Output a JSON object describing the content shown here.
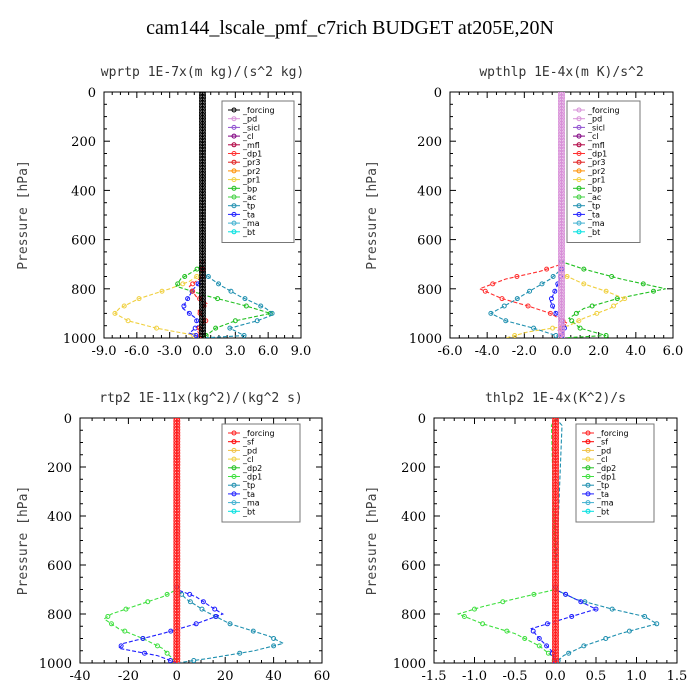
{
  "figure_title": "cam144_lscale_pmf_c7rich  BUDGET at205E,20N",
  "chart_data": [
    {
      "type": "line",
      "title": "wprtp  1E-7x(m kg)/(s^2 kg)",
      "ylabel": "Pressure [hPa]",
      "xlim": [
        -9,
        9
      ],
      "ylim": [
        1000,
        0
      ],
      "xticks": [
        "-9.0",
        "-6.0",
        "-3.0",
        "0.0",
        "3.0",
        "6.0",
        "9.0"
      ],
      "yticks": [
        "0",
        "200",
        "400",
        "600",
        "800",
        "1000"
      ],
      "legend": [
        "_forcing",
        "_pd",
        "_sicl",
        "_cl",
        "_mfl",
        "_dp1",
        "_pr3",
        "_pr2",
        "_pr1",
        "_bp",
        "_ac",
        "_tp",
        "_ta",
        "_ma",
        "_bt"
      ],
      "colors": [
        "#000000",
        "#d890d8",
        "#9050d0",
        "#800080",
        "#b00040",
        "#ff3030",
        "#e02020",
        "#ff9000",
        "#f0d040",
        "#20c020",
        "#40d040",
        "#2090b0",
        "#2020ff",
        "#40b0d0",
        "#00e0e0"
      ],
      "series": [
        {
          "name": "_pr1",
          "color": "#f0d040",
          "points": [
            [
              0.0,
              0
            ],
            [
              0.0,
              700
            ],
            [
              -0.2,
              740
            ],
            [
              -1.2,
              770
            ],
            [
              -3.0,
              800
            ],
            [
              -5.8,
              840
            ],
            [
              -7.6,
              880
            ],
            [
              -8.0,
              900
            ],
            [
              -6.8,
              930
            ],
            [
              -4.2,
              960
            ],
            [
              -1.2,
              985
            ],
            [
              0.0,
              1000
            ]
          ]
        },
        {
          "name": "_bp",
          "color": "#20c020",
          "points": [
            [
              0.0,
              0
            ],
            [
              0.0,
              700
            ],
            [
              -0.5,
              720
            ],
            [
              -2.0,
              760
            ],
            [
              -2.4,
              790
            ],
            [
              0.5,
              830
            ],
            [
              4.0,
              870
            ],
            [
              6.2,
              900
            ],
            [
              3.0,
              930
            ],
            [
              1.2,
              960
            ],
            [
              0.5,
              985
            ],
            [
              0.0,
              1000
            ]
          ]
        },
        {
          "name": "_tp",
          "color": "#2090b0",
          "points": [
            [
              0.0,
              0
            ],
            [
              0.0,
              730
            ],
            [
              0.8,
              760
            ],
            [
              1.8,
              790
            ],
            [
              3.4,
              830
            ],
            [
              5.8,
              880
            ],
            [
              6.5,
              905
            ],
            [
              5.0,
              930
            ],
            [
              2.5,
              960
            ],
            [
              3.8,
              990
            ],
            [
              0.0,
              1000
            ]
          ]
        },
        {
          "name": "_ta",
          "color": "#2020ff",
          "points": [
            [
              0.0,
              0
            ],
            [
              0.0,
              760
            ],
            [
              -0.8,
              800
            ],
            [
              -1.5,
              850
            ],
            [
              -1.8,
              880
            ],
            [
              -0.6,
              920
            ],
            [
              -0.4,
              950
            ],
            [
              -1.2,
              980
            ],
            [
              0.0,
              1000
            ]
          ]
        },
        {
          "name": "_dp1",
          "color": "#ff3030",
          "points": [
            [
              0.0,
              0
            ],
            [
              0.0,
              750
            ],
            [
              -1.2,
              790
            ],
            [
              -0.6,
              830
            ],
            [
              0.4,
              860
            ],
            [
              -0.4,
              890
            ],
            [
              0.3,
              930
            ],
            [
              -0.5,
              970
            ],
            [
              0.0,
              1000
            ]
          ]
        },
        {
          "name": "_forcing",
          "color": "#000000",
          "marker": true,
          "points": [
            [
              0.0,
              0
            ],
            [
              0.0,
              1000
            ]
          ]
        }
      ]
    },
    {
      "type": "line",
      "title": "wpthlp  1E-4x(m K)/s^2",
      "ylabel": "Pressure [hPa]",
      "xlim": [
        -6,
        6
      ],
      "ylim": [
        1000,
        0
      ],
      "xticks": [
        "-6.0",
        "-4.0",
        "-2.0",
        "0.0",
        "2.0",
        "4.0",
        "6.0"
      ],
      "yticks": [
        "0",
        "200",
        "400",
        "600",
        "800",
        "1000"
      ],
      "legend": [
        "_forcing",
        "_pd",
        "_sicl",
        "_cl",
        "_mfl",
        "_dp1",
        "_pr3",
        "_pr2",
        "_pr1",
        "_bp",
        "_ac",
        "_tp",
        "_ta",
        "_ma",
        "_bt"
      ],
      "colors": [
        "#d890d8",
        "#d890d8",
        "#9050d0",
        "#800080",
        "#b00040",
        "#ff3030",
        "#e02020",
        "#ff9000",
        "#f0d040",
        "#20c020",
        "#40d040",
        "#2090b0",
        "#2020ff",
        "#40b0d0",
        "#00e0e0"
      ],
      "series": [
        {
          "name": "_dp1",
          "color": "#ff3030",
          "points": [
            [
              0.0,
              0
            ],
            [
              0.0,
              700
            ],
            [
              -1.2,
              730
            ],
            [
              -3.0,
              760
            ],
            [
              -4.4,
              800
            ],
            [
              -3.2,
              840
            ],
            [
              -1.8,
              870
            ],
            [
              -0.6,
              900
            ],
            [
              0.3,
              940
            ],
            [
              -0.2,
              970
            ],
            [
              0.0,
              1000
            ]
          ]
        },
        {
          "name": "_bp",
          "color": "#20c020",
          "points": [
            [
              0.0,
              0
            ],
            [
              0.0,
              690
            ],
            [
              1.2,
              720
            ],
            [
              3.2,
              760
            ],
            [
              5.6,
              800
            ],
            [
              3.0,
              840
            ],
            [
              1.2,
              880
            ],
            [
              0.4,
              920
            ],
            [
              1.0,
              960
            ],
            [
              2.4,
              990
            ],
            [
              0.0,
              1000
            ]
          ]
        },
        {
          "name": "_pr1",
          "color": "#f0d040",
          "points": [
            [
              0.0,
              0
            ],
            [
              0.0,
              740
            ],
            [
              1.2,
              780
            ],
            [
              2.4,
              810
            ],
            [
              3.4,
              840
            ],
            [
              2.6,
              880
            ],
            [
              1.2,
              920
            ],
            [
              0.4,
              950
            ],
            [
              -1.8,
              975
            ],
            [
              -3.0,
              1000
            ]
          ]
        },
        {
          "name": "_tp",
          "color": "#2090b0",
          "points": [
            [
              0.0,
              0
            ],
            [
              0.0,
              720
            ],
            [
              -0.6,
              760
            ],
            [
              -1.5,
              800
            ],
            [
              -2.6,
              850
            ],
            [
              -3.8,
              900
            ],
            [
              -3.0,
              930
            ],
            [
              -1.5,
              960
            ],
            [
              -0.3,
              990
            ],
            [
              0.0,
              1000
            ]
          ]
        },
        {
          "name": "_ta",
          "color": "#2020ff",
          "points": [
            [
              0.0,
              0
            ],
            [
              0.0,
              740
            ],
            [
              -0.3,
              800
            ],
            [
              -0.6,
              850
            ],
            [
              -0.3,
              900
            ],
            [
              0.2,
              950
            ],
            [
              0.0,
              1000
            ]
          ]
        },
        {
          "name": "_forcing",
          "color": "#d890d8",
          "marker": true,
          "points": [
            [
              0.0,
              0
            ],
            [
              0.0,
              1000
            ]
          ]
        }
      ]
    },
    {
      "type": "line",
      "title": "rtp2  1E-11x(kg^2)/(kg^2 s)",
      "ylabel": "Pressure [hPa]",
      "xlim": [
        -40,
        60
      ],
      "ylim": [
        1000,
        0
      ],
      "xticks": [
        "-40",
        "-20",
        "0",
        "20",
        "40",
        "60"
      ],
      "yticks": [
        "0",
        "200",
        "400",
        "600",
        "800",
        "1000"
      ],
      "legend": [
        "_forcing",
        "_sf",
        "_pd",
        "_cl",
        "_dp2",
        "_dp1",
        "_tp",
        "_ta",
        "_ma",
        "_bt"
      ],
      "colors": [
        "#ff2020",
        "#ff0000",
        "#f0c040",
        "#f0d040",
        "#20c020",
        "#40e040",
        "#2090b0",
        "#2020ff",
        "#40b0d0",
        "#00e0e0"
      ],
      "series": [
        {
          "name": "_dp1",
          "color": "#40e040",
          "points": [
            [
              0.0,
              0
            ],
            [
              0.0,
              700
            ],
            [
              -6,
              730
            ],
            [
              -18,
              770
            ],
            [
              -27,
              800
            ],
            [
              -30,
              820
            ],
            [
              -24,
              860
            ],
            [
              -14,
              900
            ],
            [
              -6,
              940
            ],
            [
              -2,
              980
            ],
            [
              0.0,
              1000
            ]
          ]
        },
        {
          "name": "_tp",
          "color": "#2090b0",
          "points": [
            [
              0.0,
              0
            ],
            [
              0.0,
              700
            ],
            [
              4,
              740
            ],
            [
              12,
              790
            ],
            [
              22,
              840
            ],
            [
              38,
              890
            ],
            [
              44,
              920
            ],
            [
              32,
              950
            ],
            [
              14,
              980
            ],
            [
              0.0,
              1000
            ]
          ]
        },
        {
          "name": "_ta",
          "color": "#2020ff",
          "points": [
            [
              0.0,
              0
            ],
            [
              0.0,
              700
            ],
            [
              8,
              730
            ],
            [
              14,
              770
            ],
            [
              19,
              800
            ],
            [
              8,
              840
            ],
            [
              -6,
              880
            ],
            [
              -22,
              920
            ],
            [
              -24,
              940
            ],
            [
              -8,
              970
            ],
            [
              0.0,
              1000
            ]
          ]
        },
        {
          "name": "_forcing",
          "color": "#ff2020",
          "marker": true,
          "points": [
            [
              0.0,
              0
            ],
            [
              0.0,
              1000
            ]
          ]
        }
      ]
    },
    {
      "type": "line",
      "title": "thlp2  1E-4x(K^2)/s",
      "ylabel": "Pressure [hPa]",
      "xlim": [
        -1.5,
        1.5
      ],
      "ylim": [
        1000,
        0
      ],
      "xticks": [
        "-1.5",
        "-1.0",
        "-0.5",
        "0.0",
        "0.5",
        "1.0",
        "1.5"
      ],
      "yticks": [
        "0",
        "200",
        "400",
        "600",
        "800",
        "1000"
      ],
      "legend": [
        "_forcing",
        "_sf",
        "_pd",
        "_cl",
        "_dp2",
        "_dp1",
        "_tp",
        "_ta",
        "_ma",
        "_bt"
      ],
      "colors": [
        "#ff2020",
        "#ff0000",
        "#f0c040",
        "#f0d040",
        "#20c020",
        "#40e040",
        "#2090b0",
        "#2020ff",
        "#40b0d0",
        "#00e0e0"
      ],
      "series": [
        {
          "name": "_dp1",
          "color": "#40e040",
          "points": [
            [
              0.0,
              0
            ],
            [
              -0.05,
              30
            ],
            [
              0.0,
              700
            ],
            [
              -0.4,
              730
            ],
            [
              -0.9,
              770
            ],
            [
              -1.2,
              800
            ],
            [
              -0.9,
              840
            ],
            [
              -0.5,
              880
            ],
            [
              -0.2,
              930
            ],
            [
              -0.05,
              970
            ],
            [
              0.0,
              1000
            ]
          ]
        },
        {
          "name": "_tp",
          "color": "#2090b0",
          "points": [
            [
              0.0,
              0
            ],
            [
              0.08,
              30
            ],
            [
              0.0,
              700
            ],
            [
              0.25,
              740
            ],
            [
              0.7,
              780
            ],
            [
              1.1,
              810
            ],
            [
              1.25,
              840
            ],
            [
              0.8,
              880
            ],
            [
              0.35,
              930
            ],
            [
              0.1,
              970
            ],
            [
              0.0,
              1000
            ]
          ]
        },
        {
          "name": "_ta",
          "color": "#2020ff",
          "points": [
            [
              0.0,
              0
            ],
            [
              0.0,
              700
            ],
            [
              0.25,
              740
            ],
            [
              0.5,
              780
            ],
            [
              0.1,
              820
            ],
            [
              -0.3,
              860
            ],
            [
              -0.2,
              900
            ],
            [
              -0.05,
              950
            ],
            [
              0.0,
              1000
            ]
          ]
        },
        {
          "name": "_forcing",
          "color": "#ff2020",
          "marker": true,
          "points": [
            [
              0.0,
              0
            ],
            [
              0.0,
              1000
            ]
          ]
        }
      ]
    }
  ]
}
